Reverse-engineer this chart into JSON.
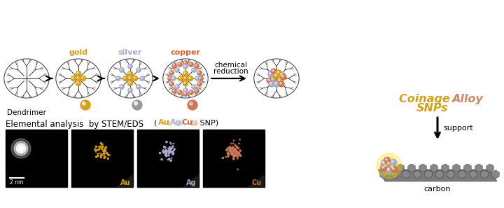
{
  "background_color": "#ffffff",
  "top_section": {
    "labels": [
      "gold",
      "silver",
      "copper"
    ],
    "label_colors": [
      "#D4A017",
      "#AAAACC",
      "#CC6633"
    ],
    "chemical_reduction_text": [
      "chemical",
      "reduction"
    ],
    "coinage_word1": "Coinage ",
    "coinage_color1": "#D4A017",
    "coinage_word2": "Alloy",
    "coinage_color2": "#CC8866",
    "snps_text": "SNPs",
    "snps_color": "#D4A017",
    "dendrimer_text": "Dendrimer",
    "support_text": "support",
    "carbon_text": "carbon",
    "gold_color": "#D4A017",
    "silver_color": "#AAAACC",
    "copper_color": "#CC7755"
  },
  "bottom_section": {
    "stem_title": "Elemental analysis  by STEM/EDS",
    "scale_text": "2 nm",
    "au_label": "Au",
    "ag_label": "Ag",
    "cu_label": "Cu",
    "au_color": "#D4A017",
    "ag_color": "#AAAACC",
    "cu_color": "#CC6633"
  }
}
